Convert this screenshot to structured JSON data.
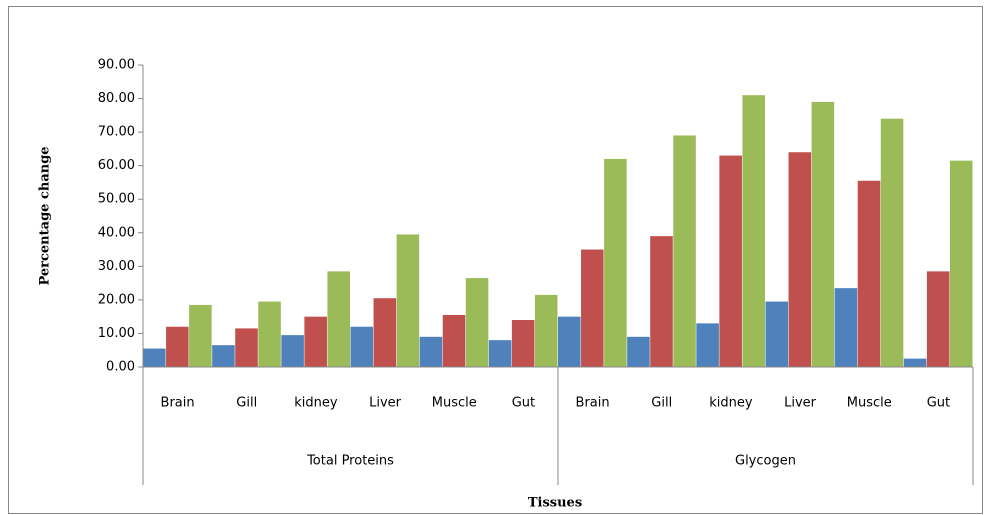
{
  "chart_data": {
    "type": "bar",
    "y_axis_label": "Percentage change",
    "x_axis_label": "Tissues",
    "categories": [
      "Brain",
      "Gill",
      "kidney",
      "Liver",
      "Muscle",
      "Gut",
      "Brain",
      "Gill",
      "kidney",
      "Liver",
      "Muscle",
      "Gut"
    ],
    "groups": [
      "Total Proteins",
      "Glycogen"
    ],
    "series": [
      {
        "color": "#4f81bd",
        "values": [
          5.5,
          6.5,
          9.5,
          12,
          9,
          8,
          15,
          9,
          13,
          19.5,
          23.5,
          2.5
        ]
      },
      {
        "color": "#c0504d",
        "values": [
          12,
          11.5,
          15,
          20.5,
          15.5,
          14,
          35,
          39,
          63,
          64,
          55.5,
          28.5
        ]
      },
      {
        "color": "#9bbb59",
        "values": [
          18.5,
          19.5,
          28.5,
          39.5,
          26.5,
          21.5,
          62,
          69,
          81,
          79,
          74,
          61.5
        ]
      }
    ],
    "ylim": [
      0,
      90
    ],
    "yticks": [
      {
        "value": 0,
        "label": "0.00"
      },
      {
        "value": 10,
        "label": "10.00"
      },
      {
        "value": 20,
        "label": "20.00"
      },
      {
        "value": 30,
        "label": "30.00"
      },
      {
        "value": 40,
        "label": "40.00"
      },
      {
        "value": 50,
        "label": "50.00"
      },
      {
        "value": 60,
        "label": "60.00"
      },
      {
        "value": 70,
        "label": "70.00"
      },
      {
        "value": 80,
        "label": "80.00"
      },
      {
        "value": 90,
        "label": "90.00"
      }
    ],
    "grid": false
  }
}
